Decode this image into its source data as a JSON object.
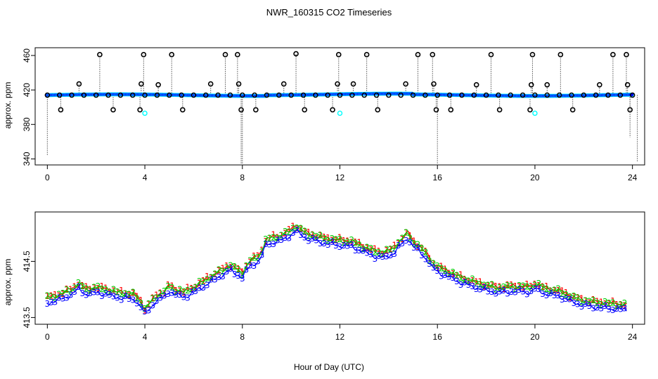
{
  "figure": {
    "title": "NWR_160315  CO2 Timeseries",
    "xlabel": "Hour of Day (UTC)"
  },
  "colors": {
    "hourly_open_circle": "#000000",
    "minute_filled": "#0000ff",
    "minute_cyan": "#00ffff",
    "series1": "#ff0000",
    "series2": "#00cc00",
    "series3": "#0000ff"
  },
  "chart_data": [
    {
      "type": "scatter",
      "name": "top-panel",
      "ylabel": "approx. ppm",
      "xlim": [
        -0.5,
        24.5
      ],
      "ylim": [
        333,
        469
      ],
      "xticks": [
        0,
        4,
        8,
        12,
        16,
        20,
        24
      ],
      "xtick_labels": [
        "0",
        "4",
        "8",
        "12",
        "16",
        "20",
        "24"
      ],
      "yticks": [
        340,
        380,
        420,
        460
      ],
      "ytick_labels": [
        "340",
        "380",
        "420",
        "460"
      ],
      "baseline": 414,
      "flagged_high": [
        {
          "x": 1.3,
          "y": 427
        },
        {
          "x": 2.15,
          "y": 461
        },
        {
          "x": 3.85,
          "y": 427
        },
        {
          "x": 3.95,
          "y": 461
        },
        {
          "x": 4.55,
          "y": 426
        },
        {
          "x": 5.1,
          "y": 461
        },
        {
          "x": 6.7,
          "y": 427
        },
        {
          "x": 7.3,
          "y": 461
        },
        {
          "x": 7.8,
          "y": 461
        },
        {
          "x": 7.85,
          "y": 427
        },
        {
          "x": 9.7,
          "y": 427
        },
        {
          "x": 10.2,
          "y": 462
        },
        {
          "x": 11.9,
          "y": 427
        },
        {
          "x": 11.95,
          "y": 461
        },
        {
          "x": 12.55,
          "y": 427
        },
        {
          "x": 13.1,
          "y": 461
        },
        {
          "x": 14.7,
          "y": 427
        },
        {
          "x": 15.2,
          "y": 461
        },
        {
          "x": 15.8,
          "y": 461
        },
        {
          "x": 15.85,
          "y": 427
        },
        {
          "x": 17.6,
          "y": 426
        },
        {
          "x": 18.2,
          "y": 461
        },
        {
          "x": 19.85,
          "y": 426
        },
        {
          "x": 19.9,
          "y": 461
        },
        {
          "x": 20.5,
          "y": 426
        },
        {
          "x": 21.05,
          "y": 461
        },
        {
          "x": 22.65,
          "y": 426
        },
        {
          "x": 23.2,
          "y": 461
        },
        {
          "x": 23.75,
          "y": 461
        },
        {
          "x": 23.8,
          "y": 426
        }
      ],
      "flagged_low": [
        {
          "x": 0.55,
          "y": 397
        },
        {
          "x": 2.7,
          "y": 397
        },
        {
          "x": 3.8,
          "y": 397
        },
        {
          "x": 5.55,
          "y": 397
        },
        {
          "x": 7.95,
          "y": 397
        },
        {
          "x": 8.55,
          "y": 397
        },
        {
          "x": 10.55,
          "y": 397
        },
        {
          "x": 11.7,
          "y": 397
        },
        {
          "x": 13.55,
          "y": 397
        },
        {
          "x": 15.95,
          "y": 397
        },
        {
          "x": 16.55,
          "y": 397
        },
        {
          "x": 18.55,
          "y": 397
        },
        {
          "x": 19.8,
          "y": 397
        },
        {
          "x": 21.55,
          "y": 397
        },
        {
          "x": 23.9,
          "y": 397
        }
      ],
      "cyan_low": [
        {
          "x": 4.0,
          "y": 393
        },
        {
          "x": 12.0,
          "y": 393
        },
        {
          "x": 20.0,
          "y": 393
        }
      ],
      "spikes_down": [
        {
          "x": 0.0,
          "y": 344
        },
        {
          "x": 7.95,
          "y": 333
        },
        {
          "x": 8.0,
          "y": 333
        },
        {
          "x": 16.0,
          "y": 335
        },
        {
          "x": 23.9,
          "y": 365
        },
        {
          "x": 24.2,
          "y": 337
        }
      ]
    },
    {
      "type": "line",
      "name": "bottom-panel",
      "ylabel": "approx. ppm",
      "xlim": [
        -0.5,
        24.5
      ],
      "ylim": [
        413.38,
        415.38
      ],
      "xticks": [
        0,
        4,
        8,
        12,
        16,
        20,
        24
      ],
      "xtick_labels": [
        "0",
        "4",
        "8",
        "12",
        "16",
        "20",
        "24"
      ],
      "yticks": [
        413.5,
        414.5
      ],
      "ytick_labels": [
        "413.5",
        "414.5"
      ],
      "profile_x": [
        0,
        0.5,
        1.0,
        1.3,
        1.6,
        2.0,
        2.4,
        2.8,
        3.2,
        3.6,
        3.85,
        4.0,
        4.2,
        4.5,
        4.8,
        5.0,
        5.2,
        5.6,
        6.0,
        6.5,
        7.0,
        7.5,
        7.8,
        8.0,
        8.3,
        8.7,
        9.0,
        9.4,
        9.8,
        10.2,
        10.6,
        11.0,
        11.5,
        12.0,
        12.5,
        13.0,
        13.5,
        13.8,
        14.2,
        14.6,
        14.8,
        15.0,
        15.3,
        15.6,
        15.8,
        16.0,
        16.5,
        17.0,
        17.5,
        18.0,
        18.5,
        19.0,
        19.5,
        19.8,
        20.0,
        20.5,
        21.0,
        21.5,
        22.0,
        22.5,
        23.0,
        23.5,
        23.8
      ],
      "profile_y": [
        413.8,
        413.85,
        413.95,
        414.05,
        413.95,
        413.98,
        413.95,
        413.9,
        413.88,
        413.85,
        413.72,
        413.6,
        413.7,
        413.85,
        413.9,
        414.02,
        413.95,
        413.9,
        413.98,
        414.12,
        414.25,
        414.38,
        414.3,
        414.25,
        414.45,
        414.55,
        414.85,
        414.88,
        414.95,
        415.08,
        414.95,
        414.9,
        414.85,
        414.82,
        414.8,
        414.7,
        414.62,
        414.6,
        414.68,
        414.88,
        414.95,
        414.8,
        414.7,
        414.55,
        414.42,
        414.35,
        414.25,
        414.15,
        414.08,
        414.02,
        413.98,
        414.0,
        414.0,
        413.98,
        414.05,
        413.95,
        413.92,
        413.82,
        413.75,
        413.72,
        413.7,
        413.68,
        413.67
      ],
      "marker_series": [
        {
          "name": "1",
          "offset": 0.06
        },
        {
          "name": "2",
          "offset": 0.05
        },
        {
          "name": "3",
          "offset": -0.04
        }
      ]
    }
  ]
}
